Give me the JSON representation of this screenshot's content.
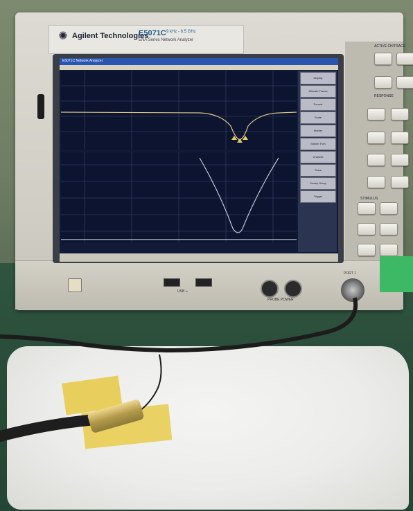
{
  "photo": {
    "subject": "",
    "colors": {
      "instrument": "#d6d3ca",
      "screen": "#111a36",
      "bench": "#2f5540",
      "foam": "#eeeeec",
      "tape": "#e8cd58"
    }
  },
  "instrument": {
    "brand": "Agilent Technologies",
    "model": "E5071C",
    "range": "9 kHz - 8.5 GHz",
    "series": "ENA Series Network Analyzer",
    "panel_labels": [
      "ACTIVE CH/TRACE",
      "RESPONSE",
      "STIMULUS"
    ],
    "usb_label": "USB",
    "probe_label": "PROBE POWER",
    "port_label": "PORT 1"
  },
  "screen": {
    "title": "E5071C Network Analyzer",
    "softkeys": [
      "Display",
      "Allocate Traces",
      "Format",
      "Scale",
      "Marker",
      "Marker Fctn",
      "Channel",
      "Trace",
      "Sweep Setup",
      "Trigger"
    ]
  },
  "icons": [
    "agilent-logo-icon",
    "usb-icon"
  ]
}
